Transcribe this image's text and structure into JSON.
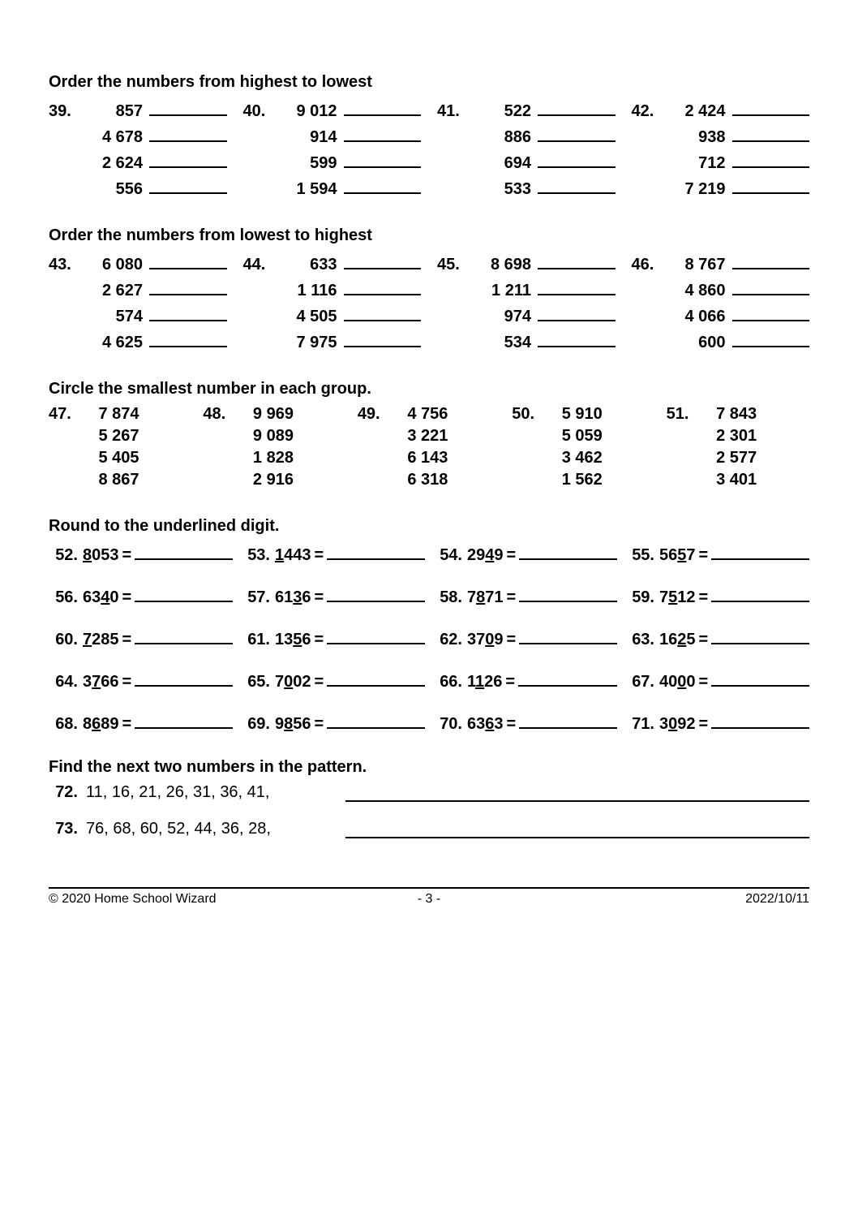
{
  "sections": {
    "order_hi_lo": {
      "title": "Order the numbers from highest to lowest",
      "problems": [
        {
          "n": "39.",
          "vals": [
            "857",
            "4 678",
            "2 624",
            "556"
          ]
        },
        {
          "n": "40.",
          "vals": [
            "9 012",
            "914",
            "599",
            "1 594"
          ]
        },
        {
          "n": "41.",
          "vals": [
            "522",
            "886",
            "694",
            "533"
          ]
        },
        {
          "n": "42.",
          "vals": [
            "2 424",
            "938",
            "712",
            "7 219"
          ]
        }
      ]
    },
    "order_lo_hi": {
      "title": "Order the numbers from lowest to highest",
      "problems": [
        {
          "n": "43.",
          "vals": [
            "6 080",
            "2 627",
            "574",
            "4 625"
          ]
        },
        {
          "n": "44.",
          "vals": [
            "633",
            "1 116",
            "4 505",
            "7 975"
          ]
        },
        {
          "n": "45.",
          "vals": [
            "8 698",
            "1 211",
            "974",
            "534"
          ]
        },
        {
          "n": "46.",
          "vals": [
            "8 767",
            "4 860",
            "4 066",
            "600"
          ]
        }
      ]
    },
    "circle_smallest": {
      "title": "Circle the smallest number in each group.",
      "problems": [
        {
          "n": "47.",
          "vals": [
            "7 874",
            "5 267",
            "5 405",
            "8 867"
          ]
        },
        {
          "n": "48.",
          "vals": [
            "9 969",
            "9 089",
            "1 828",
            "2 916"
          ]
        },
        {
          "n": "49.",
          "vals": [
            "4 756",
            "3 221",
            "6 143",
            "6 318"
          ]
        },
        {
          "n": "50.",
          "vals": [
            "5 910",
            "5 059",
            "3 462",
            "1 562"
          ]
        },
        {
          "n": "51.",
          "vals": [
            "7 843",
            "2 301",
            "2 577",
            "3 401"
          ]
        }
      ]
    },
    "round_underlined": {
      "title": "Round to the underlined digit.",
      "problems": [
        {
          "n": "52.",
          "digits": [
            "8",
            "0",
            "5",
            "3"
          ],
          "ul": 0
        },
        {
          "n": "53.",
          "digits": [
            "1",
            "4",
            "4",
            "3"
          ],
          "ul": 0
        },
        {
          "n": "54.",
          "digits": [
            "2",
            "9",
            "4",
            "9"
          ],
          "ul": 2
        },
        {
          "n": "55.",
          "digits": [
            "5",
            "6",
            "5",
            "7"
          ],
          "ul": 2
        },
        {
          "n": "56.",
          "digits": [
            "6",
            "3",
            "4",
            "0"
          ],
          "ul": 2
        },
        {
          "n": "57.",
          "digits": [
            "6",
            "1",
            "3",
            "6"
          ],
          "ul": 2
        },
        {
          "n": "58.",
          "digits": [
            "7",
            "8",
            "7",
            "1"
          ],
          "ul": 1
        },
        {
          "n": "59.",
          "digits": [
            "7",
            "5",
            "1",
            "2"
          ],
          "ul": 1
        },
        {
          "n": "60.",
          "digits": [
            "7",
            "2",
            "8",
            "5"
          ],
          "ul": 0
        },
        {
          "n": "61.",
          "digits": [
            "1",
            "3",
            "5",
            "6"
          ],
          "ul": 2
        },
        {
          "n": "62.",
          "digits": [
            "3",
            "7",
            "0",
            "9"
          ],
          "ul": 2
        },
        {
          "n": "63.",
          "digits": [
            "1",
            "6",
            "2",
            "5"
          ],
          "ul": 2
        },
        {
          "n": "64.",
          "digits": [
            "3",
            "7",
            "6",
            "6"
          ],
          "ul": 1
        },
        {
          "n": "65.",
          "digits": [
            "7",
            "0",
            "0",
            "2"
          ],
          "ul": 1
        },
        {
          "n": "66.",
          "digits": [
            "1",
            "1",
            "2",
            "6"
          ],
          "ul": 1
        },
        {
          "n": "67.",
          "digits": [
            "4",
            "0",
            "0",
            "0"
          ],
          "ul": 2
        },
        {
          "n": "68.",
          "digits": [
            "8",
            "6",
            "8",
            "9"
          ],
          "ul": 1
        },
        {
          "n": "69.",
          "digits": [
            "9",
            "8",
            "5",
            "6"
          ],
          "ul": 1
        },
        {
          "n": "70.",
          "digits": [
            "6",
            "3",
            "6",
            "3"
          ],
          "ul": 2
        },
        {
          "n": "71.",
          "digits": [
            "3",
            "0",
            "9",
            "2"
          ],
          "ul": 1
        }
      ]
    },
    "pattern": {
      "title": "Find the next two numbers in the pattern.",
      "problems": [
        {
          "n": "72.",
          "seq": "11, 16, 21, 26, 31, 36, 41,"
        },
        {
          "n": "73.",
          "seq": "76, 68, 60, 52, 44, 36, 28,"
        }
      ]
    }
  },
  "footer": {
    "left": "© 2020 Home School Wizard",
    "mid": "- 3 -",
    "right": "2022/10/11"
  }
}
